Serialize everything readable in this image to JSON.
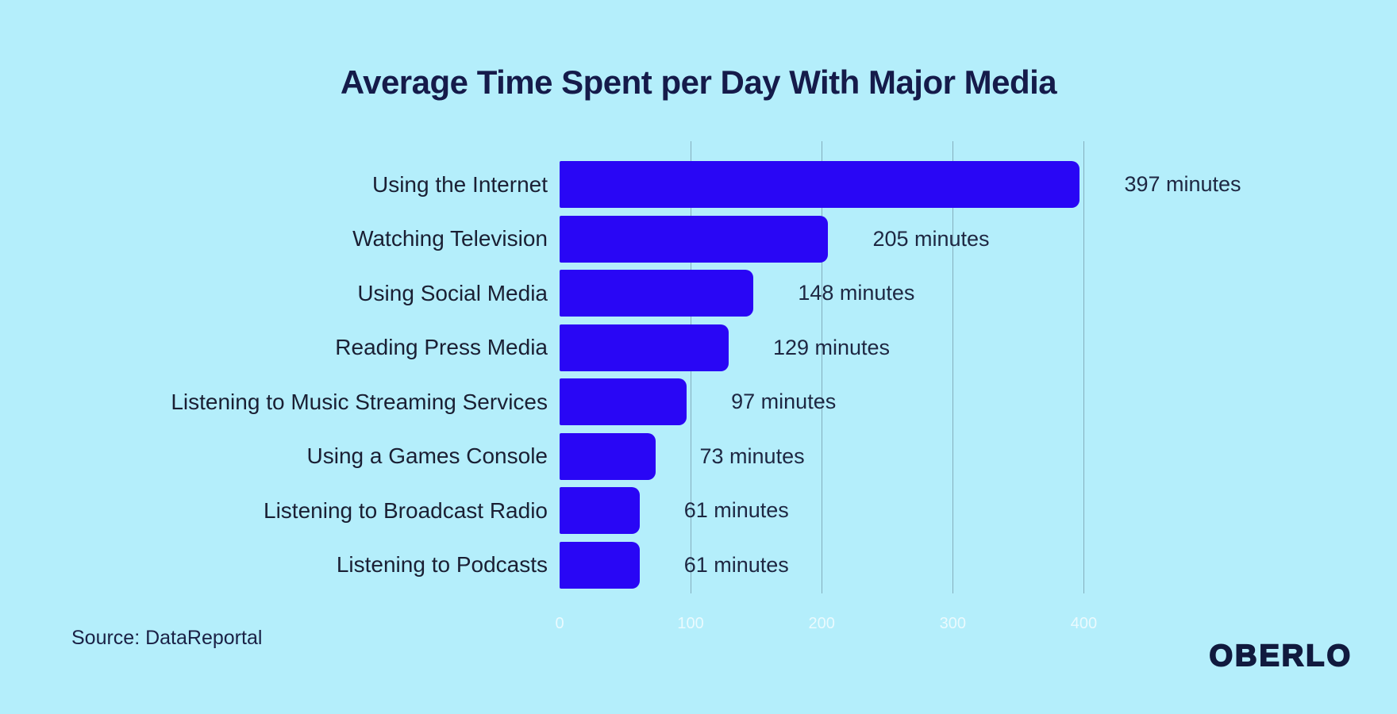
{
  "page": {
    "background_color": "#B4EEFB",
    "text_color": "#1A1F33"
  },
  "header": {
    "title": "Average Time Spent per Day With Major Media"
  },
  "chart_data": {
    "type": "bar",
    "orientation": "horizontal",
    "title": "Average Time Spent per Day With Major Media",
    "categories": [
      "Using the Internet",
      "Watching Television",
      "Using Social Media",
      "Reading Press Media",
      "Listening to Music Streaming Services",
      "Using a Games Console",
      "Listening to Broadcast Radio",
      "Listening to Podcasts"
    ],
    "values": [
      397,
      205,
      148,
      129,
      97,
      73,
      61,
      61
    ],
    "value_labels": [
      "397 minutes",
      "205 minutes",
      "148 minutes",
      "129 minutes",
      "97 minutes",
      "73 minutes",
      "61 minutes",
      "61 minutes"
    ],
    "unit": "minutes",
    "xlabel": "",
    "ylabel": "",
    "xlim": [
      0,
      400
    ],
    "x_ticks": [
      0,
      100,
      200,
      300,
      400
    ],
    "grid": "vertical-gridlines-behind-bars",
    "legend": "none",
    "bar_color": "#2906F5",
    "gridline_color": "#84AEBD"
  },
  "footer": {
    "source": "Source: DataReportal",
    "brand": "OBERLO"
  }
}
